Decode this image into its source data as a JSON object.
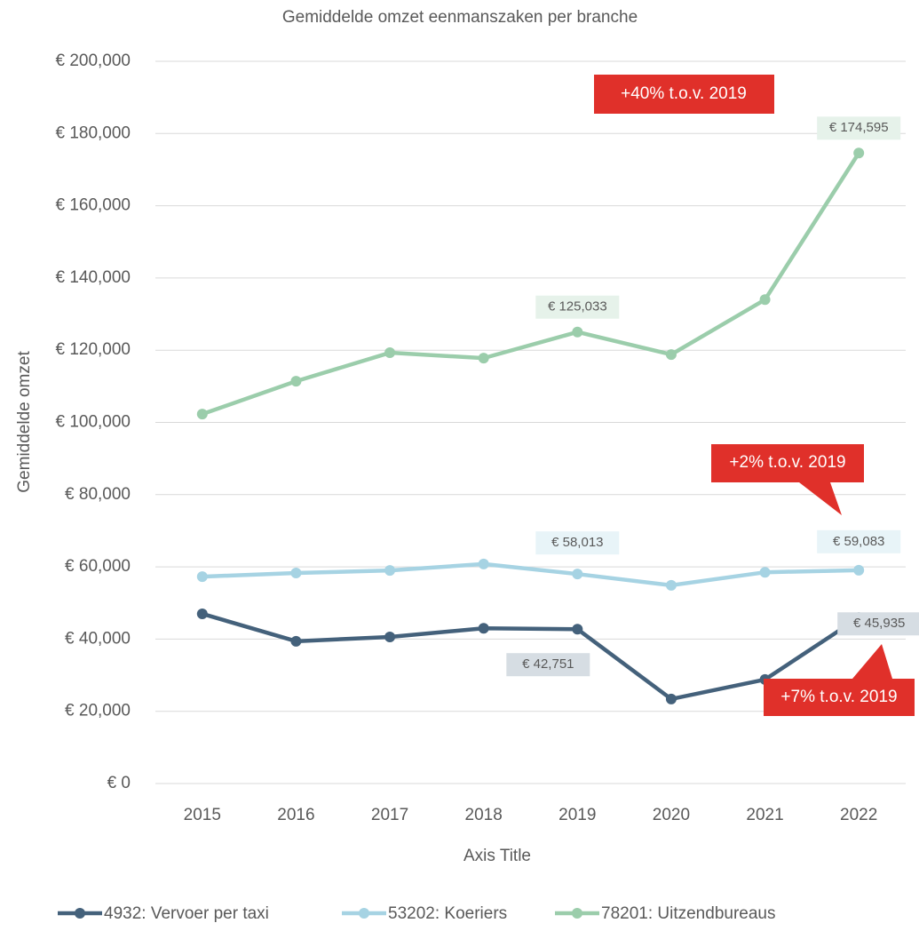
{
  "chart_data": {
    "type": "line",
    "title": "Gemiddelde omzet eenmanszaken per branche",
    "x_label": "Axis Title",
    "y_label": "Gemiddelde omzet",
    "categories": [
      "2015",
      "2016",
      "2017",
      "2018",
      "2019",
      "2020",
      "2021",
      "2022"
    ],
    "series": [
      {
        "name": "4932: Vervoer per taxi",
        "color": "#44617b",
        "values": [
          47000,
          39400,
          40600,
          43000,
          42751,
          23400,
          28800,
          45935
        ],
        "value_labels": [
          null,
          null,
          null,
          null,
          "€ 42,751",
          null,
          null,
          "€ 45,935"
        ]
      },
      {
        "name": "53202: Koeriers",
        "color": "#a6d3e3",
        "values": [
          57300,
          58300,
          59000,
          60800,
          58013,
          54900,
          58500,
          59083
        ],
        "value_labels": [
          null,
          null,
          null,
          null,
          "€ 58,013",
          null,
          null,
          "€ 59,083"
        ]
      },
      {
        "name": "78201: Uitzendbureaus",
        "color": "#9bcdab",
        "values": [
          102300,
          111400,
          119300,
          117800,
          125033,
          118800,
          134000,
          174595
        ],
        "value_labels": [
          null,
          null,
          null,
          null,
          "€ 125,033",
          null,
          null,
          "€ 174,595"
        ]
      }
    ],
    "annotations": [
      "+40% t.o.v. 2019",
      "+2% t.o.v. 2019",
      "+7% t.o.v. 2019"
    ],
    "ylim": [
      0,
      200000
    ],
    "yticks": [
      {
        "value": 0,
        "label": "€ 0"
      },
      {
        "value": 20000,
        "label": "€ 20,000"
      },
      {
        "value": 40000,
        "label": "€ 40,000"
      },
      {
        "value": 60000,
        "label": "€ 60,000"
      },
      {
        "value": 80000,
        "label": "€ 80,000"
      },
      {
        "value": 100000,
        "label": "€ 100,000"
      },
      {
        "value": 120000,
        "label": "€ 120,000"
      },
      {
        "value": 140000,
        "label": "€ 140,000"
      },
      {
        "value": 160000,
        "label": "€ 160,000"
      },
      {
        "value": 180000,
        "label": "€ 180,000"
      },
      {
        "value": 200000,
        "label": "€ 200,000"
      }
    ],
    "grid": true,
    "legend": "bottom"
  }
}
